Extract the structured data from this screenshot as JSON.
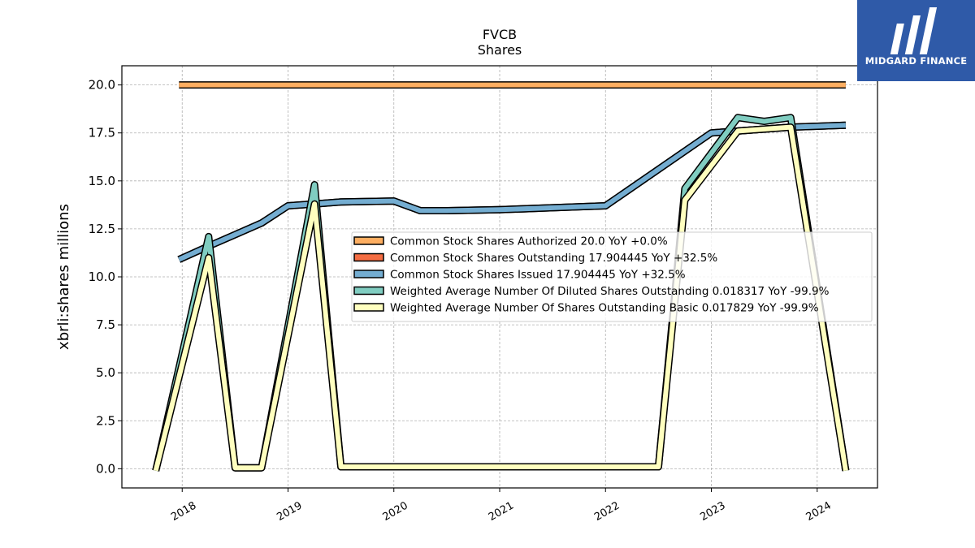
{
  "chart_data": {
    "type": "line",
    "title": "FVCB",
    "subtitle": "Shares",
    "xlabel": "",
    "ylabel": "xbrli:shares millions",
    "ylim": [
      -1,
      21
    ],
    "xlim": [
      2017.43,
      2024.57
    ],
    "yticks": [
      "0.0",
      "2.5",
      "5.0",
      "7.5",
      "10.0",
      "12.5",
      "15.0",
      "17.5",
      "20.0"
    ],
    "xticks": [
      "2018",
      "2019",
      "2020",
      "2021",
      "2022",
      "2023",
      "2024"
    ],
    "grid": true,
    "legend_position": "center-right",
    "series": [
      {
        "name": "Common Stock Shares Authorized  20.0 YoY +0.0%",
        "color": "#fdae61",
        "points": [
          [
            2017.97,
            20.0
          ],
          [
            2024.27,
            20.0
          ]
        ]
      },
      {
        "name": "Common Stock Shares Outstanding  17.904445 YoY +32.5%",
        "color": "#f46d43",
        "points": [
          [
            2017.97,
            10.9
          ],
          [
            2018.25,
            11.6
          ],
          [
            2018.5,
            12.2
          ],
          [
            2018.75,
            12.8
          ],
          [
            2019.0,
            13.7
          ],
          [
            2019.25,
            13.8
          ],
          [
            2019.5,
            13.9
          ],
          [
            2020.0,
            13.95
          ],
          [
            2020.25,
            13.45
          ],
          [
            2020.5,
            13.45
          ],
          [
            2021.0,
            13.5
          ],
          [
            2021.5,
            13.6
          ],
          [
            2022.0,
            13.7
          ],
          [
            2023.0,
            17.5
          ],
          [
            2023.25,
            17.6
          ],
          [
            2023.5,
            17.7
          ],
          [
            2023.75,
            17.8
          ],
          [
            2024.27,
            17.9
          ]
        ]
      },
      {
        "name": "Common Stock Shares Issued  17.904445 YoY +32.5%",
        "color": "#74add1",
        "points": [
          [
            2017.97,
            10.9
          ],
          [
            2018.25,
            11.6
          ],
          [
            2018.5,
            12.2
          ],
          [
            2018.75,
            12.8
          ],
          [
            2019.0,
            13.7
          ],
          [
            2019.25,
            13.8
          ],
          [
            2019.5,
            13.9
          ],
          [
            2020.0,
            13.95
          ],
          [
            2020.25,
            13.45
          ],
          [
            2020.5,
            13.45
          ],
          [
            2021.0,
            13.5
          ],
          [
            2021.5,
            13.6
          ],
          [
            2022.0,
            13.7
          ],
          [
            2023.0,
            17.5
          ],
          [
            2023.25,
            17.6
          ],
          [
            2023.5,
            17.7
          ],
          [
            2023.75,
            17.8
          ],
          [
            2024.27,
            17.9
          ]
        ]
      },
      {
        "name": "Weighted Average Number Of Diluted Shares Outstanding  0.018317 YoY -99.9%",
        "color": "#80cdc1",
        "points": [
          [
            2017.75,
            -0.1
          ],
          [
            2018.25,
            12.1
          ],
          [
            2018.5,
            0.05
          ],
          [
            2018.75,
            0.05
          ],
          [
            2019.25,
            14.8
          ],
          [
            2019.5,
            0.1
          ],
          [
            2022.5,
            0.1
          ],
          [
            2022.75,
            14.6
          ],
          [
            2023.25,
            18.3
          ],
          [
            2023.5,
            18.1
          ],
          [
            2023.75,
            18.3
          ],
          [
            2024.27,
            -0.1
          ]
        ]
      },
      {
        "name": "Weighted Average Number Of Shares Outstanding Basic  0.017829 YoY -99.9%",
        "color": "#ffffbf",
        "points": [
          [
            2017.75,
            -0.1
          ],
          [
            2018.25,
            11.0
          ],
          [
            2018.5,
            0.05
          ],
          [
            2018.75,
            0.05
          ],
          [
            2019.25,
            13.8
          ],
          [
            2019.5,
            0.1
          ],
          [
            2022.5,
            0.1
          ],
          [
            2022.75,
            14.0
          ],
          [
            2023.25,
            17.6
          ],
          [
            2023.5,
            17.7
          ],
          [
            2023.75,
            17.8
          ],
          [
            2024.27,
            -0.1
          ]
        ]
      }
    ]
  },
  "logo": {
    "text": "MIDGARD FINANCE",
    "background": "#2f5aa8"
  }
}
